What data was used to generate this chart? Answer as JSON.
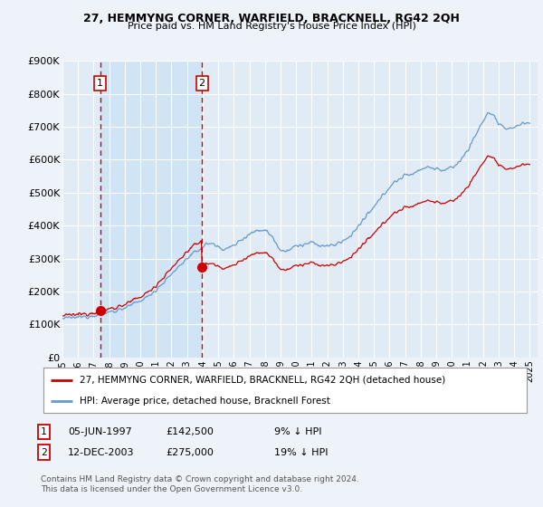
{
  "title": "27, HEMMYNG CORNER, WARFIELD, BRACKNELL, RG42 2QH",
  "subtitle": "Price paid vs. HM Land Registry's House Price Index (HPI)",
  "ylim": [
    0,
    900000
  ],
  "yticks": [
    0,
    100000,
    200000,
    300000,
    400000,
    500000,
    600000,
    700000,
    800000,
    900000
  ],
  "ytick_labels": [
    "£0",
    "£100K",
    "£200K",
    "£300K",
    "£400K",
    "£500K",
    "£600K",
    "£700K",
    "£800K",
    "£900K"
  ],
  "xlim_start": 1995.0,
  "xlim_end": 2025.5,
  "sale1_date": 1997.42,
  "sale1_price": 142500,
  "sale2_date": 2003.95,
  "sale2_price": 275000,
  "legend_red_label": "27, HEMMYNG CORNER, WARFIELD, BRACKNELL, RG42 2QH (detached house)",
  "legend_blue_label": "HPI: Average price, detached house, Bracknell Forest",
  "footnote": "Contains HM Land Registry data © Crown copyright and database right 2024.\nThis data is licensed under the Open Government Licence v3.0.",
  "bg_color": "#eef3fa",
  "plot_bg_color": "#e0ebf5",
  "shade_color": "#d0e4f5",
  "grid_color": "#ffffff",
  "red_line_color": "#cc0000",
  "blue_line_color": "#6699cc",
  "dashed_color": "#cc0000"
}
